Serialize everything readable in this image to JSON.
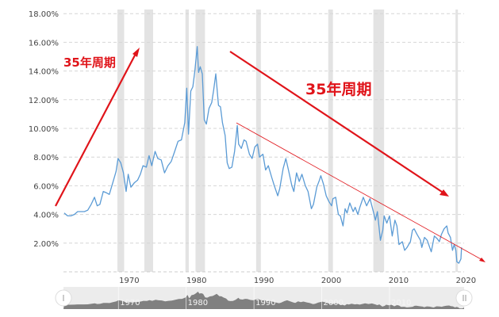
{
  "chart_data": {
    "type": "line",
    "title": "",
    "xlabel": "",
    "ylabel": "",
    "xlim": [
      1961.9,
      2021
    ],
    "ylim": [
      0,
      18
    ],
    "grid": true,
    "y_ticks": [
      "18.00%",
      "16.00%",
      "14.00%",
      "12.00%",
      "10.00%",
      "8.00%",
      "6.00%",
      "4.00%",
      "2.00%"
    ],
    "y_tick_values": [
      18,
      16,
      14,
      12,
      10,
      8,
      6,
      4,
      2
    ],
    "x_ticks": [
      "1970",
      "1980",
      "1990",
      "2000",
      "2010",
      "2020"
    ],
    "x_tick_values": [
      1970,
      1980,
      1990,
      2000,
      2010,
      2020
    ],
    "navigator_ticks": [
      "1970",
      "1980",
      "1990",
      "2000",
      "2010"
    ],
    "line_color": "#5b9bd5",
    "recession_color": "#e3e3e3",
    "recessions": [
      [
        1969.9,
        1970.9
      ],
      [
        1973.9,
        1975.2
      ],
      [
        1980.0,
        1980.5
      ],
      [
        1981.5,
        1982.9
      ],
      [
        1990.5,
        1991.2
      ],
      [
        2001.2,
        2001.9
      ],
      [
        2007.9,
        2009.5
      ],
      [
        2020.1,
        2020.4
      ]
    ],
    "series": [
      {
        "values": [
          [
            1962.0,
            4.1
          ],
          [
            1962.5,
            3.9
          ],
          [
            1963.0,
            3.9
          ],
          [
            1963.5,
            4.0
          ],
          [
            1964.0,
            4.2
          ],
          [
            1964.5,
            4.2
          ],
          [
            1965.0,
            4.2
          ],
          [
            1965.5,
            4.3
          ],
          [
            1966.0,
            4.7
          ],
          [
            1966.5,
            5.2
          ],
          [
            1966.9,
            4.6
          ],
          [
            1967.3,
            4.7
          ],
          [
            1967.8,
            5.6
          ],
          [
            1968.3,
            5.5
          ],
          [
            1968.7,
            5.4
          ],
          [
            1969.2,
            6.2
          ],
          [
            1969.7,
            7.0
          ],
          [
            1970.0,
            7.9
          ],
          [
            1970.4,
            7.6
          ],
          [
            1970.8,
            6.9
          ],
          [
            1971.2,
            5.6
          ],
          [
            1971.5,
            6.8
          ],
          [
            1971.9,
            5.9
          ],
          [
            1972.4,
            6.2
          ],
          [
            1972.9,
            6.4
          ],
          [
            1973.3,
            6.8
          ],
          [
            1973.7,
            7.4
          ],
          [
            1974.2,
            7.3
          ],
          [
            1974.6,
            8.1
          ],
          [
            1975.0,
            7.4
          ],
          [
            1975.5,
            8.4
          ],
          [
            1975.9,
            7.9
          ],
          [
            1976.4,
            7.8
          ],
          [
            1976.9,
            6.9
          ],
          [
            1977.4,
            7.4
          ],
          [
            1977.9,
            7.7
          ],
          [
            1978.4,
            8.4
          ],
          [
            1978.9,
            9.1
          ],
          [
            1979.4,
            9.2
          ],
          [
            1979.9,
            10.4
          ],
          [
            1980.2,
            12.8
          ],
          [
            1980.45,
            9.6
          ],
          [
            1980.8,
            12.6
          ],
          [
            1981.1,
            12.9
          ],
          [
            1981.4,
            14.0
          ],
          [
            1981.75,
            15.7
          ],
          [
            1981.95,
            13.9
          ],
          [
            1982.2,
            14.3
          ],
          [
            1982.5,
            13.8
          ],
          [
            1982.8,
            10.6
          ],
          [
            1983.1,
            10.3
          ],
          [
            1983.5,
            11.4
          ],
          [
            1983.9,
            11.8
          ],
          [
            1984.2,
            12.7
          ],
          [
            1984.5,
            13.8
          ],
          [
            1984.9,
            11.6
          ],
          [
            1985.2,
            11.5
          ],
          [
            1985.5,
            10.4
          ],
          [
            1985.9,
            9.5
          ],
          [
            1986.2,
            7.6
          ],
          [
            1986.5,
            7.2
          ],
          [
            1986.9,
            7.3
          ],
          [
            1987.3,
            8.4
          ],
          [
            1987.7,
            10.2
          ],
          [
            1987.9,
            8.9
          ],
          [
            1988.3,
            8.6
          ],
          [
            1988.7,
            9.2
          ],
          [
            1989.0,
            9.1
          ],
          [
            1989.5,
            8.2
          ],
          [
            1989.9,
            7.9
          ],
          [
            1990.3,
            8.7
          ],
          [
            1990.7,
            8.9
          ],
          [
            1991.0,
            8.0
          ],
          [
            1991.5,
            8.2
          ],
          [
            1991.9,
            7.1
          ],
          [
            1992.3,
            7.4
          ],
          [
            1992.8,
            6.6
          ],
          [
            1993.2,
            6.0
          ],
          [
            1993.7,
            5.3
          ],
          [
            1994.0,
            5.8
          ],
          [
            1994.5,
            7.2
          ],
          [
            1994.9,
            7.9
          ],
          [
            1995.3,
            7.1
          ],
          [
            1995.8,
            6.0
          ],
          [
            1996.1,
            5.6
          ],
          [
            1996.5,
            6.9
          ],
          [
            1996.9,
            6.3
          ],
          [
            1997.3,
            6.8
          ],
          [
            1997.8,
            6.0
          ],
          [
            1998.2,
            5.6
          ],
          [
            1998.7,
            4.4
          ],
          [
            1999.0,
            4.7
          ],
          [
            1999.5,
            5.9
          ],
          [
            1999.9,
            6.4
          ],
          [
            2000.1,
            6.7
          ],
          [
            2000.5,
            6.1
          ],
          [
            2000.9,
            5.3
          ],
          [
            2001.3,
            4.9
          ],
          [
            2001.7,
            4.6
          ],
          [
            2001.9,
            5.1
          ],
          [
            2002.3,
            5.2
          ],
          [
            2002.7,
            4.0
          ],
          [
            2003.0,
            3.9
          ],
          [
            2003.4,
            3.2
          ],
          [
            2003.7,
            4.4
          ],
          [
            2004.0,
            4.1
          ],
          [
            2004.4,
            4.8
          ],
          [
            2004.9,
            4.2
          ],
          [
            2005.2,
            4.5
          ],
          [
            2005.6,
            4.0
          ],
          [
            2005.9,
            4.5
          ],
          [
            2006.4,
            5.2
          ],
          [
            2006.9,
            4.6
          ],
          [
            2007.4,
            5.1
          ],
          [
            2007.9,
            4.2
          ],
          [
            2008.2,
            3.6
          ],
          [
            2008.5,
            4.2
          ],
          [
            2008.95,
            2.2
          ],
          [
            2009.3,
            2.9
          ],
          [
            2009.5,
            3.9
          ],
          [
            2009.9,
            3.4
          ],
          [
            2010.3,
            3.9
          ],
          [
            2010.7,
            2.5
          ],
          [
            2011.1,
            3.6
          ],
          [
            2011.4,
            3.2
          ],
          [
            2011.7,
            1.9
          ],
          [
            2012.2,
            2.1
          ],
          [
            2012.55,
            1.5
          ],
          [
            2012.9,
            1.7
          ],
          [
            2013.4,
            2.1
          ],
          [
            2013.7,
            2.9
          ],
          [
            2013.95,
            3.0
          ],
          [
            2014.4,
            2.6
          ],
          [
            2014.9,
            2.2
          ],
          [
            2015.1,
            1.7
          ],
          [
            2015.5,
            2.4
          ],
          [
            2015.9,
            2.2
          ],
          [
            2016.5,
            1.4
          ],
          [
            2016.95,
            2.5
          ],
          [
            2017.4,
            2.3
          ],
          [
            2017.7,
            2.1
          ],
          [
            2018.0,
            2.6
          ],
          [
            2018.4,
            3.0
          ],
          [
            2018.8,
            3.2
          ],
          [
            2019.0,
            2.7
          ],
          [
            2019.35,
            2.4
          ],
          [
            2019.65,
            1.5
          ],
          [
            2019.9,
            1.9
          ],
          [
            2020.15,
            1.5
          ],
          [
            2020.3,
            0.7
          ],
          [
            2020.6,
            0.6
          ],
          [
            2020.9,
            0.9
          ],
          [
            2021.0,
            1.7
          ]
        ]
      }
    ],
    "annotations": [
      {
        "text": "35年周期",
        "color": "#e0141a"
      },
      {
        "text": "35年周期",
        "color": "#e0141a"
      }
    ]
  }
}
